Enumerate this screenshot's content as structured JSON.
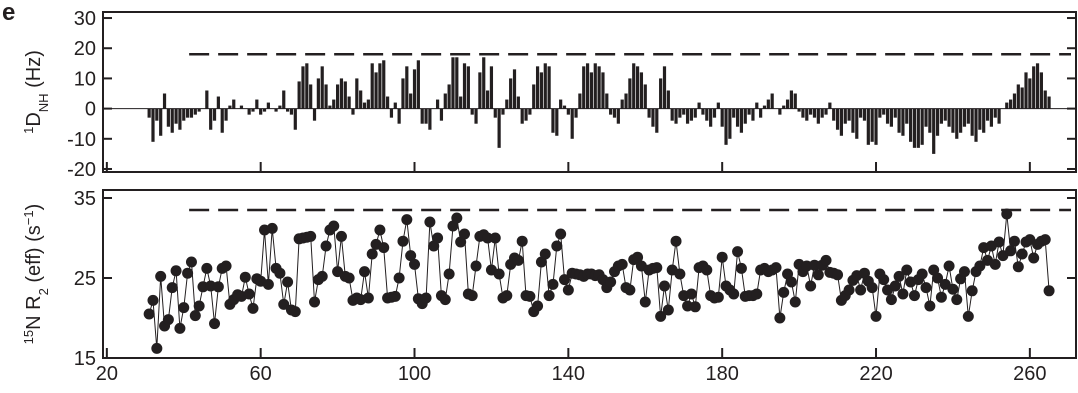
{
  "panel_label": "e",
  "chart_data": [
    {
      "type": "bar",
      "y_label": [
        {
          "text": "1",
          "style": "sup"
        },
        {
          "text": "D",
          "style": "normal"
        },
        {
          "text": "NH",
          "style": "sub"
        },
        {
          "text": " (Hz)",
          "style": "normal"
        }
      ],
      "xlim": [
        19,
        272
      ],
      "ylim": [
        -21,
        32
      ],
      "yticks": [
        -20,
        -10,
        0,
        10,
        20,
        30
      ],
      "reference_line": 18,
      "color": "#231f20",
      "x": [
        31,
        32,
        33,
        34,
        35,
        36,
        37,
        38,
        39,
        40,
        41,
        42,
        43,
        44,
        45,
        46,
        47,
        48,
        49,
        50,
        51,
        52,
        53,
        54,
        55,
        56,
        57,
        58,
        59,
        60,
        61,
        62,
        63,
        64,
        65,
        66,
        67,
        68,
        69,
        70,
        71,
        72,
        73,
        74,
        75,
        76,
        77,
        78,
        79,
        80,
        81,
        82,
        83,
        84,
        85,
        86,
        87,
        88,
        89,
        90,
        91,
        92,
        93,
        94,
        95,
        96,
        97,
        98,
        99,
        100,
        101,
        102,
        103,
        104,
        105,
        106,
        107,
        108,
        109,
        110,
        111,
        112,
        113,
        114,
        115,
        116,
        117,
        118,
        119,
        120,
        121,
        122,
        123,
        124,
        125,
        126,
        127,
        128,
        129,
        130,
        131,
        132,
        133,
        134,
        135,
        136,
        137,
        138,
        139,
        140,
        141,
        142,
        143,
        144,
        145,
        146,
        147,
        148,
        149,
        150,
        151,
        152,
        153,
        154,
        155,
        156,
        157,
        158,
        159,
        160,
        161,
        162,
        163,
        164,
        165,
        166,
        167,
        168,
        169,
        170,
        171,
        172,
        173,
        174,
        175,
        176,
        177,
        178,
        179,
        180,
        181,
        182,
        183,
        184,
        185,
        186,
        187,
        188,
        189,
        190,
        191,
        192,
        193,
        194,
        195,
        196,
        197,
        198,
        199,
        200,
        201,
        202,
        203,
        204,
        205,
        206,
        207,
        208,
        209,
        210,
        211,
        212,
        213,
        214,
        215,
        216,
        217,
        218,
        219,
        220,
        221,
        222,
        223,
        224,
        225,
        226,
        227,
        228,
        229,
        230,
        231,
        232,
        233,
        234,
        235,
        236,
        237,
        238,
        239,
        240,
        241,
        242,
        243,
        244,
        245,
        246,
        247,
        248,
        249,
        250,
        251,
        252,
        253,
        254,
        255,
        256,
        257,
        258,
        259,
        260,
        261,
        262,
        263,
        264,
        265
      ],
      "values": [
        -3,
        -11,
        -4,
        -9,
        5,
        -6,
        -8,
        -5,
        -7,
        -4,
        -3,
        -3,
        -2,
        -1,
        null,
        6,
        -7,
        -4,
        4,
        -8,
        -4,
        1,
        3,
        0,
        1,
        0,
        -2,
        -1,
        3,
        -2,
        -1,
        2,
        0,
        -1,
        1,
        6,
        -1,
        -2,
        -7,
        9,
        14,
        15,
        8,
        -4,
        10,
        14,
        8,
        1,
        3,
        8,
        10,
        9,
        4,
        -2,
        10,
        6,
        2,
        3,
        15,
        12,
        15,
        16,
        4,
        -3,
        2,
        -5,
        10,
        14,
        5,
        13,
        16,
        -5,
        -5,
        -7,
        0,
        3,
        -4,
        5,
        8,
        17,
        17,
        4,
        15,
        14,
        -2,
        -5,
        12,
        17,
        6,
        14,
        -3,
        -13,
        -2,
        3,
        10,
        13,
        4,
        -5,
        -4,
        -2,
        8,
        14,
        12,
        15,
        14,
        -8,
        -9,
        3,
        1,
        -2,
        -10,
        -3,
        5,
        14,
        15,
        12,
        15,
        14,
        12,
        5,
        -2,
        -3,
        -5,
        3,
        5,
        10,
        15,
        14,
        12,
        8,
        -3,
        -6,
        -8,
        10,
        14,
        6,
        -4,
        -5,
        -3,
        -2,
        -5,
        -4,
        -3,
        2,
        -2,
        -4,
        -6,
        -3,
        2,
        -6,
        -12,
        -10,
        -3,
        -6,
        -8,
        -5,
        -2,
        -4,
        2,
        -3,
        1,
        3,
        5,
        0,
        -2,
        1,
        3,
        6,
        5,
        -1,
        -3,
        -4,
        -2,
        -3,
        -5,
        -3,
        -2,
        2,
        -4,
        -7,
        -9,
        -5,
        -4,
        -8,
        -10,
        -3,
        -4,
        -12,
        -11,
        -12,
        -3,
        -2,
        -5,
        -6,
        -3,
        -8,
        -9,
        -5,
        -11,
        -13,
        -13,
        -12,
        -6,
        -8,
        -15,
        -9,
        -5,
        -4,
        -6,
        -8,
        -10,
        -8,
        -6,
        -5,
        -9,
        -11,
        -7,
        -8,
        -4,
        -6,
        -3,
        -5,
        0,
        2,
        3,
        5,
        8,
        7,
        12,
        10,
        14,
        15,
        12,
        6,
        4
      ]
    },
    {
      "type": "line",
      "y_label": [
        {
          "text": "15",
          "style": "sup"
        },
        {
          "text": "N R",
          "style": "normal"
        },
        {
          "text": "2",
          "style": "sub"
        },
        {
          "text": " (eff) (s",
          "style": "normal"
        },
        {
          "text": "−1",
          "style": "sup"
        },
        {
          "text": ")",
          "style": "normal"
        }
      ],
      "xlim": [
        19,
        272
      ],
      "ylim": [
        15,
        36
      ],
      "yticks": [
        15,
        25,
        35
      ],
      "xticks": [
        20,
        60,
        100,
        140,
        180,
        220,
        260
      ],
      "reference_line": 33.5,
      "color": "#231f20",
      "values": [
        20.5,
        22.2,
        16.2,
        25.2,
        19,
        19.8,
        23.8,
        25.9,
        18.7,
        21.3,
        25.6,
        27,
        20.3,
        21.5,
        23.9,
        26.2,
        24,
        19.3,
        23.9,
        26.2,
        26.5,
        21.7,
        22.3,
        22.9,
        22.7,
        25.1,
        23,
        21.2,
        24.9,
        24.6,
        31,
        24.2,
        31.2,
        26.2,
        25.6,
        21.7,
        24.5,
        21,
        20.8,
        29.9,
        30,
        30.1,
        30.2,
        22,
        24.8,
        25.2,
        29,
        31,
        31.5,
        25.8,
        30.2,
        25.2,
        25,
        22.2,
        22.5,
        22.3,
        25.8,
        22.5,
        28,
        29.2,
        31,
        28.8,
        22.5,
        22.6,
        22.7,
        25,
        29.6,
        32.3,
        27.8,
        26.7,
        22.4,
        21.8,
        22.5,
        32,
        29,
        30,
        22.8,
        22.3,
        25.5,
        31.5,
        32.5,
        29.5,
        30.5,
        23,
        22.8,
        26.5,
        30.2,
        30.4,
        30,
        26,
        30,
        25.5,
        22.5,
        22.8,
        26.7,
        27.5,
        27.2,
        29.6,
        22.8,
        22.7,
        20.8,
        21.5,
        27,
        28,
        22.8,
        24.2,
        29,
        30.5,
        24.8,
        23.5,
        25.6,
        25.5,
        25.4,
        25.2,
        25.5,
        25.5,
        25.3,
        25.4,
        24.8,
        23.8,
        24.5,
        25.8,
        26.5,
        26.7,
        23.8,
        23.5,
        27.3,
        27.6,
        26.5,
        22,
        26,
        26.2,
        26.3,
        20.2,
        24,
        21,
        26,
        29.6,
        25.5,
        22.8,
        21.5,
        23,
        21.4,
        26.3,
        26.5,
        26,
        22.8,
        22.5,
        22.6,
        27.6,
        24,
        23.5,
        23,
        28.3,
        26.2,
        22.7,
        22.8,
        22.8,
        23,
        26,
        26.2,
        25.8,
        26,
        26.3,
        20,
        23.2,
        25.5,
        24.5,
        22,
        26.7,
        25.8,
        26.5,
        24,
        26.6,
        25.4,
        26.6,
        27.2,
        25.7,
        25.6,
        25.4,
        22.2,
        22.8,
        23.5,
        24.7,
        25.3,
        23.5,
        25.6,
        24.6,
        23.8,
        20.2,
        25.5,
        24.8,
        23.5,
        22.3,
        24,
        25.2,
        23,
        26,
        24.5,
        22.8,
        24.8,
        25.5,
        23.8,
        21.5,
        26,
        25,
        22.6,
        24.2,
        26.5,
        23.6,
        22.3,
        24.9,
        25.8,
        20.2,
        23.4,
        25.8,
        26.5,
        28.8,
        27.2,
        29,
        26.7,
        29.5,
        27.8,
        33,
        28.4,
        29.6,
        26.4,
        28,
        29.5,
        29.8,
        27.5,
        29.2,
        29.6,
        29.8,
        23.4
      ]
    }
  ]
}
